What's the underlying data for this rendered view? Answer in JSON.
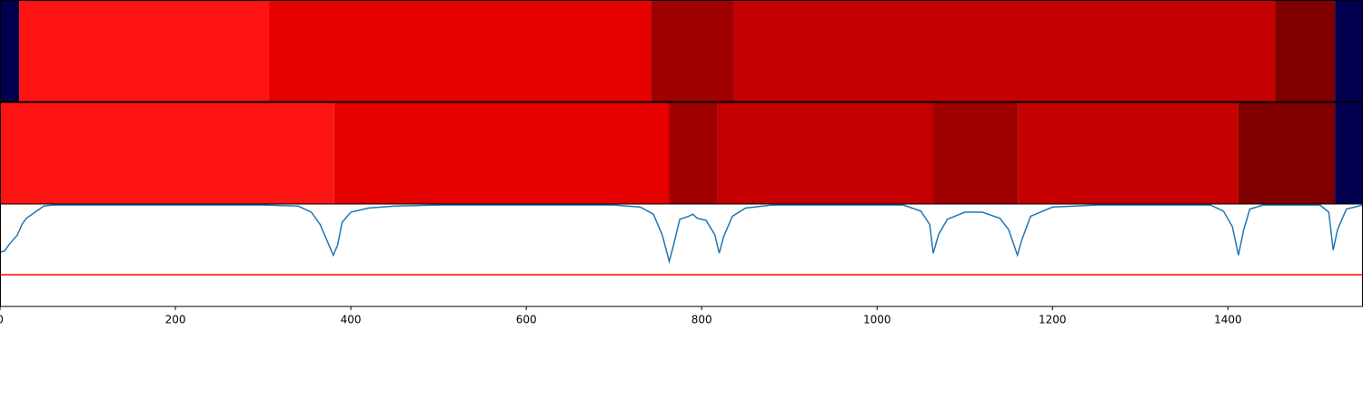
{
  "chart_data": [
    {
      "type": "segments",
      "segments": [
        {
          "start": 0,
          "end": 21.8,
          "color": "#00004f"
        },
        {
          "start": 21.8,
          "end": 306.7,
          "color": "#ff1414"
        },
        {
          "start": 306.7,
          "end": 742,
          "color": "#e60000"
        },
        {
          "start": 742,
          "end": 837,
          "color": "#a00000"
        },
        {
          "start": 837,
          "end": 1454,
          "color": "#c40000"
        },
        {
          "start": 1454,
          "end": 1522,
          "color": "#800000"
        },
        {
          "start": 1522,
          "end": 1554,
          "color": "#00004f"
        }
      ]
    },
    {
      "type": "segments",
      "segments": [
        {
          "start": 0,
          "end": 381,
          "color": "#ff1414"
        },
        {
          "start": 381,
          "end": 763,
          "color": "#e60000"
        },
        {
          "start": 763,
          "end": 818,
          "color": "#a00000"
        },
        {
          "start": 818,
          "end": 1064,
          "color": "#c40000"
        },
        {
          "start": 1064,
          "end": 1161,
          "color": "#a00000"
        },
        {
          "start": 1161,
          "end": 1412,
          "color": "#c40000"
        },
        {
          "start": 1412,
          "end": 1522,
          "color": "#800000"
        },
        {
          "start": 1522,
          "end": 1554,
          "color": "#00004f"
        }
      ]
    },
    {
      "type": "line",
      "xlim": [
        0,
        1554
      ],
      "ylim": [
        0,
        1
      ],
      "xticks": [
        0,
        200,
        400,
        600,
        800,
        1000,
        1200,
        1400
      ],
      "threshold": {
        "value": 0.31,
        "color": "#ff0000"
      },
      "series": [
        {
          "color": "#1f77b4",
          "x": [
            0,
            5,
            10,
            15,
            20,
            25,
            30,
            40,
            50,
            60,
            300,
            340,
            355,
            365,
            375,
            380,
            385,
            390,
            400,
            420,
            450,
            500,
            700,
            730,
            745,
            755,
            763,
            768,
            775,
            785,
            790,
            795,
            805,
            815,
            820,
            825,
            835,
            850,
            880,
            1030,
            1050,
            1060,
            1064,
            1070,
            1080,
            1100,
            1120,
            1140,
            1150,
            1160,
            1165,
            1175,
            1200,
            1250,
            1380,
            1395,
            1405,
            1412,
            1418,
            1425,
            1440,
            1505,
            1515,
            1520,
            1525,
            1535,
            1554
          ],
          "values": [
            0.53,
            0.54,
            0.6,
            0.65,
            0.7,
            0.8,
            0.86,
            0.92,
            0.98,
            0.99,
            0.99,
            0.98,
            0.92,
            0.8,
            0.6,
            0.5,
            0.6,
            0.82,
            0.92,
            0.96,
            0.98,
            0.99,
            0.99,
            0.97,
            0.9,
            0.7,
            0.44,
            0.6,
            0.85,
            0.88,
            0.9,
            0.86,
            0.84,
            0.7,
            0.52,
            0.68,
            0.88,
            0.96,
            0.99,
            0.99,
            0.93,
            0.8,
            0.52,
            0.7,
            0.85,
            0.92,
            0.92,
            0.86,
            0.75,
            0.5,
            0.65,
            0.88,
            0.97,
            0.99,
            0.99,
            0.93,
            0.78,
            0.5,
            0.75,
            0.95,
            0.99,
            0.99,
            0.92,
            0.55,
            0.75,
            0.95,
            0.99
          ]
        }
      ]
    }
  ]
}
